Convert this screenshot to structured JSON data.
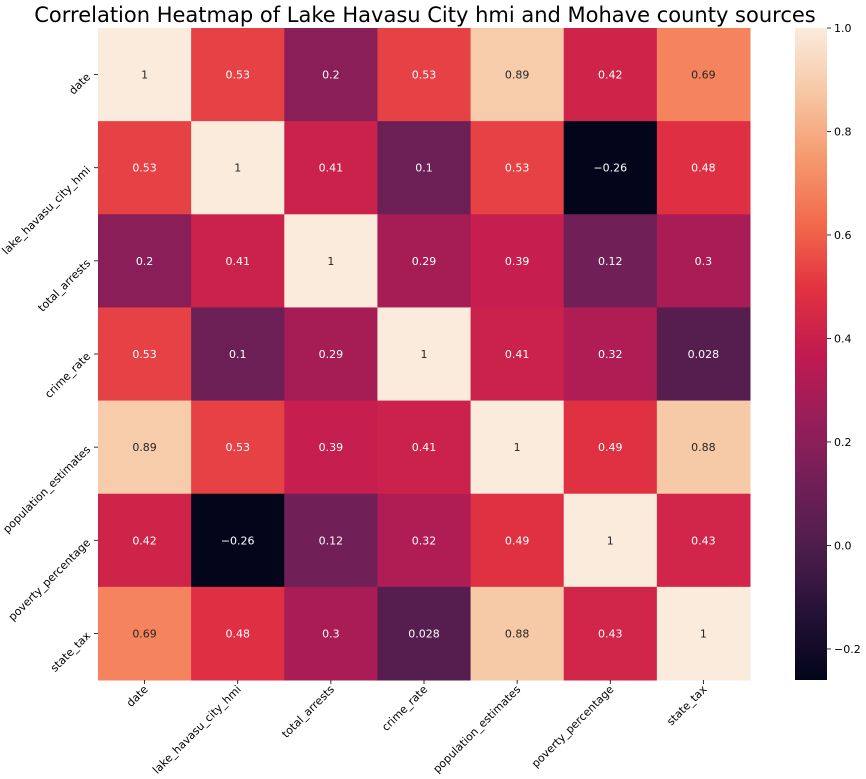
{
  "chart_data": {
    "type": "heatmap",
    "title": "Correlation Heatmap of Lake Havasu City hmi and Mohave county sources",
    "x_labels": [
      "date",
      "lake_havasu_city_hmi",
      "total_arrests",
      "crime_rate",
      "population_estimates",
      "poverty_percentage",
      "state_tax"
    ],
    "y_labels": [
      "date",
      "lake_havasu_city_hmi",
      "total_arrests",
      "crime_rate",
      "population_estimates",
      "poverty_percentage",
      "state_tax"
    ],
    "values": [
      [
        1,
        0.53,
        0.2,
        0.53,
        0.89,
        0.42,
        0.69
      ],
      [
        0.53,
        1,
        0.41,
        0.1,
        0.53,
        -0.26,
        0.48
      ],
      [
        0.2,
        0.41,
        1,
        0.29,
        0.39,
        0.12,
        0.3
      ],
      [
        0.53,
        0.1,
        0.29,
        1,
        0.41,
        0.32,
        0.028
      ],
      [
        0.89,
        0.53,
        0.39,
        0.41,
        1,
        0.49,
        0.88
      ],
      [
        0.42,
        -0.26,
        0.12,
        0.32,
        0.49,
        1,
        0.43
      ],
      [
        0.69,
        0.48,
        0.3,
        0.028,
        0.88,
        0.43,
        1
      ]
    ],
    "colorbar": {
      "min": -0.26,
      "max": 1,
      "ticks": [
        1.0,
        0.8,
        0.6,
        0.4,
        0.2,
        0.0,
        -0.2
      ],
      "tick_labels": [
        "1.0",
        "0.8",
        "0.6",
        "0.4",
        "0.2",
        "0.0",
        "−0.2"
      ]
    },
    "colormap": "rocket",
    "annotated": true
  }
}
